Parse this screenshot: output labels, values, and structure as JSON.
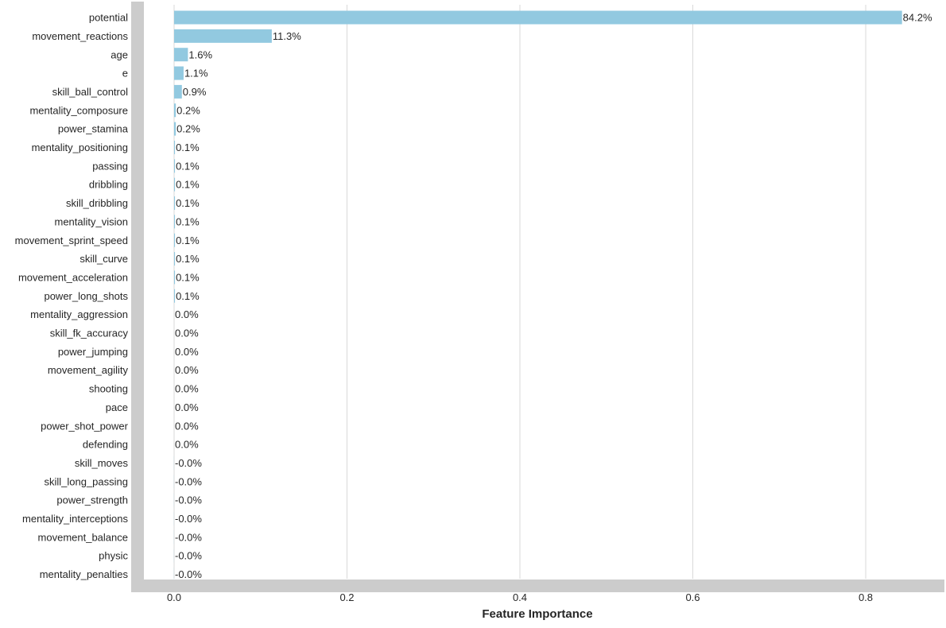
{
  "chart_data": {
    "type": "bar",
    "orientation": "horizontal",
    "xlabel": "Feature Importance",
    "ylabel": "",
    "xlim": [
      -0.05,
      0.89
    ],
    "xticks": [
      0.0,
      0.2,
      0.4,
      0.6,
      0.8
    ],
    "xtick_labels": [
      "0.0",
      "0.2",
      "0.4",
      "0.6",
      "0.8"
    ],
    "grid": "vertical",
    "bar_color": "#92c9e0",
    "spine_color": "#cccccc",
    "grid_color": "#d9d9d9",
    "categories": [
      "potential",
      "movement_reactions",
      "age",
      "e",
      "skill_ball_control",
      "mentality_composure",
      "power_stamina",
      "mentality_positioning",
      "passing",
      "dribbling",
      "skill_dribbling",
      "mentality_vision",
      "movement_sprint_speed",
      "skill_curve",
      "movement_acceleration",
      "power_long_shots",
      "mentality_aggression",
      "skill_fk_accuracy",
      "power_jumping",
      "movement_agility",
      "shooting",
      "pace",
      "power_shot_power",
      "defending",
      "skill_moves",
      "skill_long_passing",
      "power_strength",
      "mentality_interceptions",
      "movement_balance",
      "physic",
      "mentality_penalties"
    ],
    "values": [
      0.842,
      0.113,
      0.016,
      0.011,
      0.009,
      0.002,
      0.002,
      0.001,
      0.001,
      0.001,
      0.001,
      0.001,
      0.001,
      0.001,
      0.001,
      0.001,
      0.0,
      0.0,
      0.0,
      0.0,
      0.0,
      0.0,
      0.0,
      0.0,
      -0.0001,
      -0.0001,
      -0.0001,
      -0.0001,
      -0.0001,
      -0.0001,
      -0.0001
    ],
    "data_labels": [
      "84.2%",
      "11.3%",
      "1.6%",
      "1.1%",
      "0.9%",
      "0.2%",
      "0.2%",
      "0.1%",
      "0.1%",
      "0.1%",
      "0.1%",
      "0.1%",
      "0.1%",
      "0.1%",
      "0.1%",
      "0.1%",
      "0.0%",
      "0.0%",
      "0.0%",
      "0.0%",
      "0.0%",
      "0.0%",
      "0.0%",
      "0.0%",
      "-0.0%",
      "-0.0%",
      "-0.0%",
      "-0.0%",
      "-0.0%",
      "-0.0%",
      "-0.0%"
    ]
  }
}
